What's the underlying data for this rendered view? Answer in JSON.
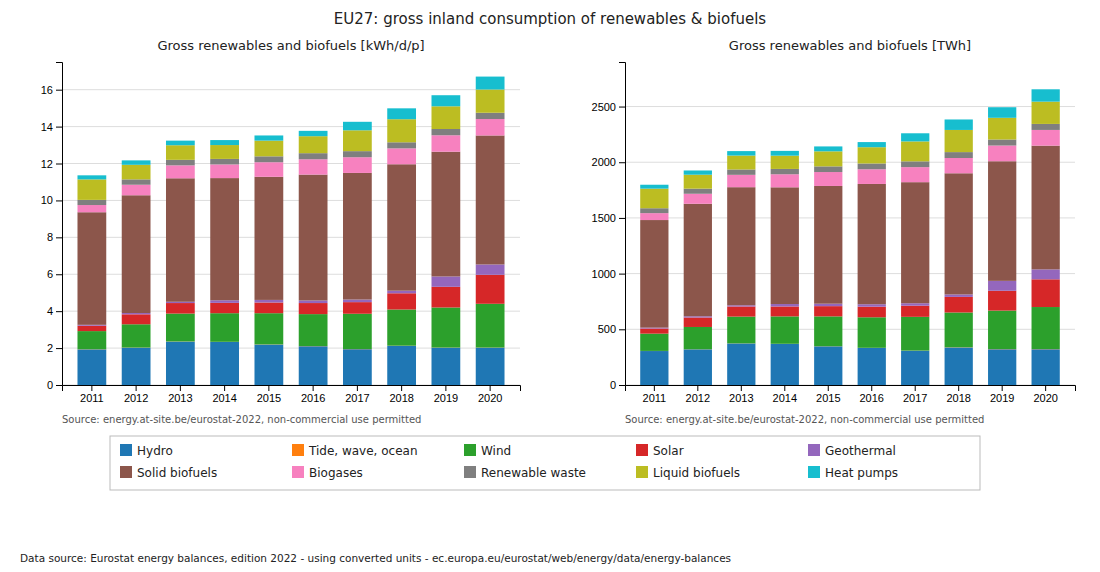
{
  "title": "EU27: gross inland consumption of renewables & biofuels",
  "annotations": [
    "Data source: Eurostat energy balances, edition 2022 - using converted units - ec.europa.eu/eurostat/web/energy/data/energy-balances"
  ],
  "chart_data": [
    {
      "type": "bar",
      "stacked": true,
      "grid": true,
      "legend": "bottom",
      "title": "Gross renewables and biofuels [kWh/d/p]",
      "annotations": [
        "Source: energy.at-site.be/eurostat-2022, non-commercial use permitted"
      ],
      "categories": [
        "2011",
        "2012",
        "2013",
        "2014",
        "2015",
        "2016",
        "2017",
        "2018",
        "2019",
        "2020"
      ],
      "ylim": [
        0,
        17.5
      ],
      "yticks": [
        0,
        2,
        4,
        6,
        8,
        10,
        12,
        14,
        16
      ],
      "series": [
        {
          "name": "Hydro",
          "color": "#1f77b4",
          "values": [
            1.93,
            2.02,
            2.35,
            2.33,
            2.19,
            2.1,
            1.94,
            2.12,
            2.02,
            2.02
          ]
        },
        {
          "name": "Tide, wave, ocean",
          "color": "#ff7f0e",
          "values": [
            0.01,
            0.01,
            0.01,
            0.01,
            0.01,
            0.01,
            0.01,
            0.01,
            0.01,
            0.01
          ]
        },
        {
          "name": "Wind",
          "color": "#2ca02c",
          "values": [
            0.98,
            1.26,
            1.51,
            1.55,
            1.69,
            1.73,
            1.91,
            1.96,
            2.17,
            2.37
          ]
        },
        {
          "name": "Solar",
          "color": "#d62728",
          "values": [
            0.29,
            0.54,
            0.57,
            0.56,
            0.58,
            0.6,
            0.63,
            0.88,
            1.12,
            1.57
          ]
        },
        {
          "name": "Geothermal",
          "color": "#9467bd",
          "values": [
            0.05,
            0.07,
            0.07,
            0.14,
            0.14,
            0.14,
            0.14,
            0.14,
            0.56,
            0.56
          ]
        },
        {
          "name": "Solid biofuels",
          "color": "#8c564b",
          "values": [
            6.1,
            6.38,
            6.69,
            6.62,
            6.67,
            6.82,
            6.86,
            6.85,
            6.76,
            6.99
          ]
        },
        {
          "name": "Biogases",
          "color": "#f781bf",
          "values": [
            0.39,
            0.57,
            0.7,
            0.74,
            0.79,
            0.83,
            0.85,
            0.86,
            0.89,
            0.89
          ]
        },
        {
          "name": "Renewable waste",
          "color": "#7f7f7f",
          "values": [
            0.28,
            0.29,
            0.3,
            0.3,
            0.32,
            0.33,
            0.33,
            0.33,
            0.34,
            0.34
          ]
        },
        {
          "name": "Liquid biofuels",
          "color": "#bcbd22",
          "values": [
            1.11,
            0.79,
            0.79,
            0.75,
            0.85,
            0.92,
            1.13,
            1.25,
            1.23,
            1.26
          ]
        },
        {
          "name": "Heat pumps",
          "color": "#17becf",
          "values": [
            0.22,
            0.24,
            0.25,
            0.27,
            0.28,
            0.29,
            0.46,
            0.59,
            0.6,
            0.7
          ]
        }
      ]
    },
    {
      "type": "bar",
      "stacked": true,
      "grid": true,
      "legend": "bottom",
      "title": "Gross renewables and biofuels [TWh]",
      "annotations": [
        "Source: energy.at-site.be/eurostat-2022, non-commercial use permitted"
      ],
      "categories": [
        "2011",
        "2012",
        "2013",
        "2014",
        "2015",
        "2016",
        "2017",
        "2018",
        "2019",
        "2020"
      ],
      "ylim": [
        0,
        2900
      ],
      "yticks": [
        0,
        500,
        1000,
        1500,
        2000,
        2500
      ],
      "series": [
        {
          "name": "Hydro",
          "color": "#1f77b4",
          "values": [
            305,
            320,
            373,
            369,
            347,
            333,
            308,
            337,
            321,
            321
          ]
        },
        {
          "name": "Tide, wave, ocean",
          "color": "#ff7f0e",
          "values": [
            1,
            1,
            1,
            1,
            1,
            1,
            1,
            2,
            2,
            2
          ]
        },
        {
          "name": "Wind",
          "color": "#2ca02c",
          "values": [
            155,
            200,
            240,
            246,
            268,
            274,
            303,
            312,
            345,
            377
          ]
        },
        {
          "name": "Solar",
          "color": "#d62728",
          "values": [
            46,
            85,
            91,
            89,
            92,
            95,
            100,
            140,
            178,
            249
          ]
        },
        {
          "name": "Geothermal",
          "color": "#9467bd",
          "values": [
            8,
            11,
            11,
            22,
            22,
            22,
            22,
            22,
            89,
            89
          ]
        },
        {
          "name": "Solid biofuels",
          "color": "#8c564b",
          "values": [
            966,
            1010,
            1060,
            1048,
            1057,
            1080,
            1087,
            1088,
            1074,
            1111
          ]
        },
        {
          "name": "Biogases",
          "color": "#f781bf",
          "values": [
            62,
            90,
            111,
            117,
            125,
            132,
            135,
            137,
            141,
            141
          ]
        },
        {
          "name": "Renewable waste",
          "color": "#7f7f7f",
          "values": [
            44,
            46,
            48,
            48,
            51,
            52,
            52,
            53,
            54,
            54
          ]
        },
        {
          "name": "Liquid biofuels",
          "color": "#bcbd22",
          "values": [
            176,
            125,
            125,
            119,
            135,
            146,
            179,
            199,
            195,
            200
          ]
        },
        {
          "name": "Heat pumps",
          "color": "#17becf",
          "values": [
            35,
            38,
            40,
            43,
            44,
            46,
            73,
            94,
            95,
            111
          ]
        }
      ]
    }
  ]
}
